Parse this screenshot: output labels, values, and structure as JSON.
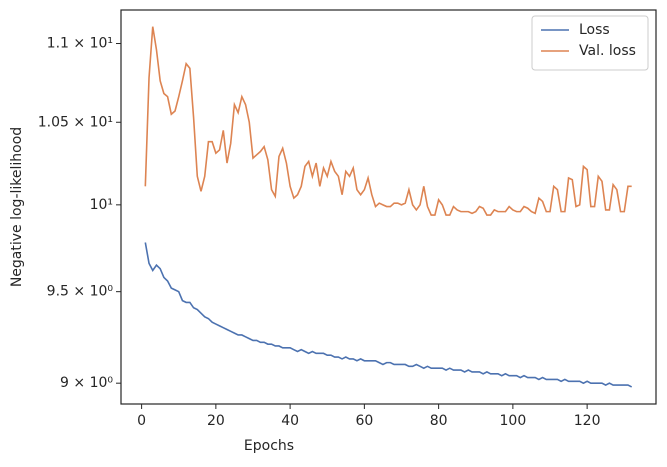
{
  "chart_data": {
    "type": "line",
    "xlabel": "Epochs",
    "ylabel": "Negative log-likelihood",
    "x": [
      1,
      2,
      3,
      4,
      5,
      6,
      7,
      8,
      9,
      10,
      11,
      12,
      13,
      14,
      15,
      16,
      17,
      18,
      19,
      20,
      21,
      22,
      23,
      24,
      25,
      26,
      27,
      28,
      29,
      30,
      31,
      32,
      33,
      34,
      35,
      36,
      37,
      38,
      39,
      40,
      41,
      42,
      43,
      44,
      45,
      46,
      47,
      48,
      49,
      50,
      51,
      52,
      53,
      54,
      55,
      56,
      57,
      58,
      59,
      60,
      61,
      62,
      63,
      64,
      65,
      66,
      67,
      68,
      69,
      70,
      71,
      72,
      73,
      74,
      75,
      76,
      77,
      78,
      79,
      80,
      81,
      82,
      83,
      84,
      85,
      86,
      87,
      88,
      89,
      90,
      91,
      92,
      93,
      94,
      95,
      96,
      97,
      98,
      99,
      100,
      101,
      102,
      103,
      104,
      105,
      106,
      107,
      108,
      109,
      110,
      111,
      112,
      113,
      114,
      115,
      116,
      117,
      118,
      119,
      120,
      121,
      122,
      123,
      124,
      125,
      126,
      127,
      128,
      129,
      130,
      131,
      132
    ],
    "series": [
      {
        "name": "Loss",
        "color": "#4c72b0",
        "values": [
          9.78,
          9.66,
          9.62,
          9.65,
          9.63,
          9.58,
          9.56,
          9.52,
          9.51,
          9.5,
          9.45,
          9.44,
          9.44,
          9.41,
          9.4,
          9.38,
          9.36,
          9.35,
          9.33,
          9.32,
          9.31,
          9.3,
          9.29,
          9.28,
          9.27,
          9.26,
          9.26,
          9.25,
          9.24,
          9.23,
          9.23,
          9.22,
          9.22,
          9.21,
          9.21,
          9.2,
          9.2,
          9.19,
          9.19,
          9.19,
          9.18,
          9.17,
          9.18,
          9.17,
          9.16,
          9.17,
          9.16,
          9.16,
          9.16,
          9.15,
          9.15,
          9.14,
          9.14,
          9.13,
          9.14,
          9.13,
          9.13,
          9.12,
          9.13,
          9.12,
          9.12,
          9.12,
          9.12,
          9.11,
          9.1,
          9.11,
          9.11,
          9.1,
          9.1,
          9.1,
          9.1,
          9.09,
          9.09,
          9.1,
          9.09,
          9.08,
          9.09,
          9.08,
          9.08,
          9.08,
          9.08,
          9.07,
          9.08,
          9.07,
          9.07,
          9.07,
          9.06,
          9.07,
          9.06,
          9.06,
          9.06,
          9.05,
          9.06,
          9.05,
          9.05,
          9.05,
          9.04,
          9.05,
          9.04,
          9.04,
          9.04,
          9.03,
          9.04,
          9.03,
          9.03,
          9.03,
          9.02,
          9.03,
          9.02,
          9.02,
          9.02,
          9.02,
          9.01,
          9.02,
          9.01,
          9.01,
          9.01,
          9.01,
          9.0,
          9.01,
          9.0,
          9.0,
          9.0,
          9.0,
          8.99,
          9.0,
          8.99,
          8.99,
          8.99,
          8.99,
          8.99,
          8.98
        ]
      },
      {
        "name": "Val. loss",
        "color": "#dd8452",
        "values": [
          10.11,
          10.78,
          11.11,
          10.96,
          10.76,
          10.68,
          10.66,
          10.55,
          10.57,
          10.66,
          10.76,
          10.87,
          10.84,
          10.53,
          10.17,
          10.08,
          10.17,
          10.38,
          10.38,
          10.31,
          10.33,
          10.45,
          10.25,
          10.37,
          10.61,
          10.56,
          10.66,
          10.61,
          10.5,
          10.28,
          10.3,
          10.32,
          10.35,
          10.27,
          10.09,
          10.05,
          10.29,
          10.34,
          10.25,
          10.11,
          10.04,
          10.06,
          10.11,
          10.23,
          10.26,
          10.17,
          10.25,
          10.11,
          10.22,
          10.17,
          10.26,
          10.2,
          10.17,
          10.06,
          10.2,
          10.17,
          10.22,
          10.09,
          10.06,
          10.09,
          10.16,
          10.06,
          9.99,
          10.01,
          10.0,
          9.99,
          9.99,
          10.01,
          10.01,
          10.0,
          10.01,
          10.09,
          10.0,
          9.97,
          10.0,
          10.11,
          9.99,
          9.94,
          9.94,
          10.03,
          10.0,
          9.94,
          9.94,
          9.99,
          9.97,
          9.96,
          9.96,
          9.96,
          9.95,
          9.96,
          9.99,
          9.98,
          9.94,
          9.94,
          9.97,
          9.96,
          9.96,
          9.96,
          9.99,
          9.97,
          9.96,
          9.96,
          9.99,
          9.98,
          9.96,
          9.95,
          10.04,
          10.02,
          9.96,
          9.96,
          10.11,
          10.09,
          9.96,
          9.96,
          10.16,
          10.15,
          9.99,
          10.0,
          10.23,
          10.21,
          9.99,
          9.99,
          10.17,
          10.14,
          9.97,
          9.97,
          10.12,
          10.09,
          9.96,
          9.96,
          10.11,
          10.11
        ]
      }
    ],
    "xlim": [
      -5.55,
      138.55
    ],
    "xticks": [
      0,
      20,
      40,
      60,
      80,
      100,
      120
    ],
    "ylim": [
      8.89,
      11.22
    ],
    "ylog": true,
    "yticks": [
      {
        "value": 9,
        "label": "9 × 10⁰"
      },
      {
        "value": 9.5,
        "label": "9.5 × 10⁰"
      },
      {
        "value": 10,
        "label": "10¹"
      },
      {
        "value": 10.5,
        "label": "1.05 × 10¹"
      },
      {
        "value": 11,
        "label": "1.1 × 10¹"
      }
    ],
    "legend": "upper right"
  }
}
